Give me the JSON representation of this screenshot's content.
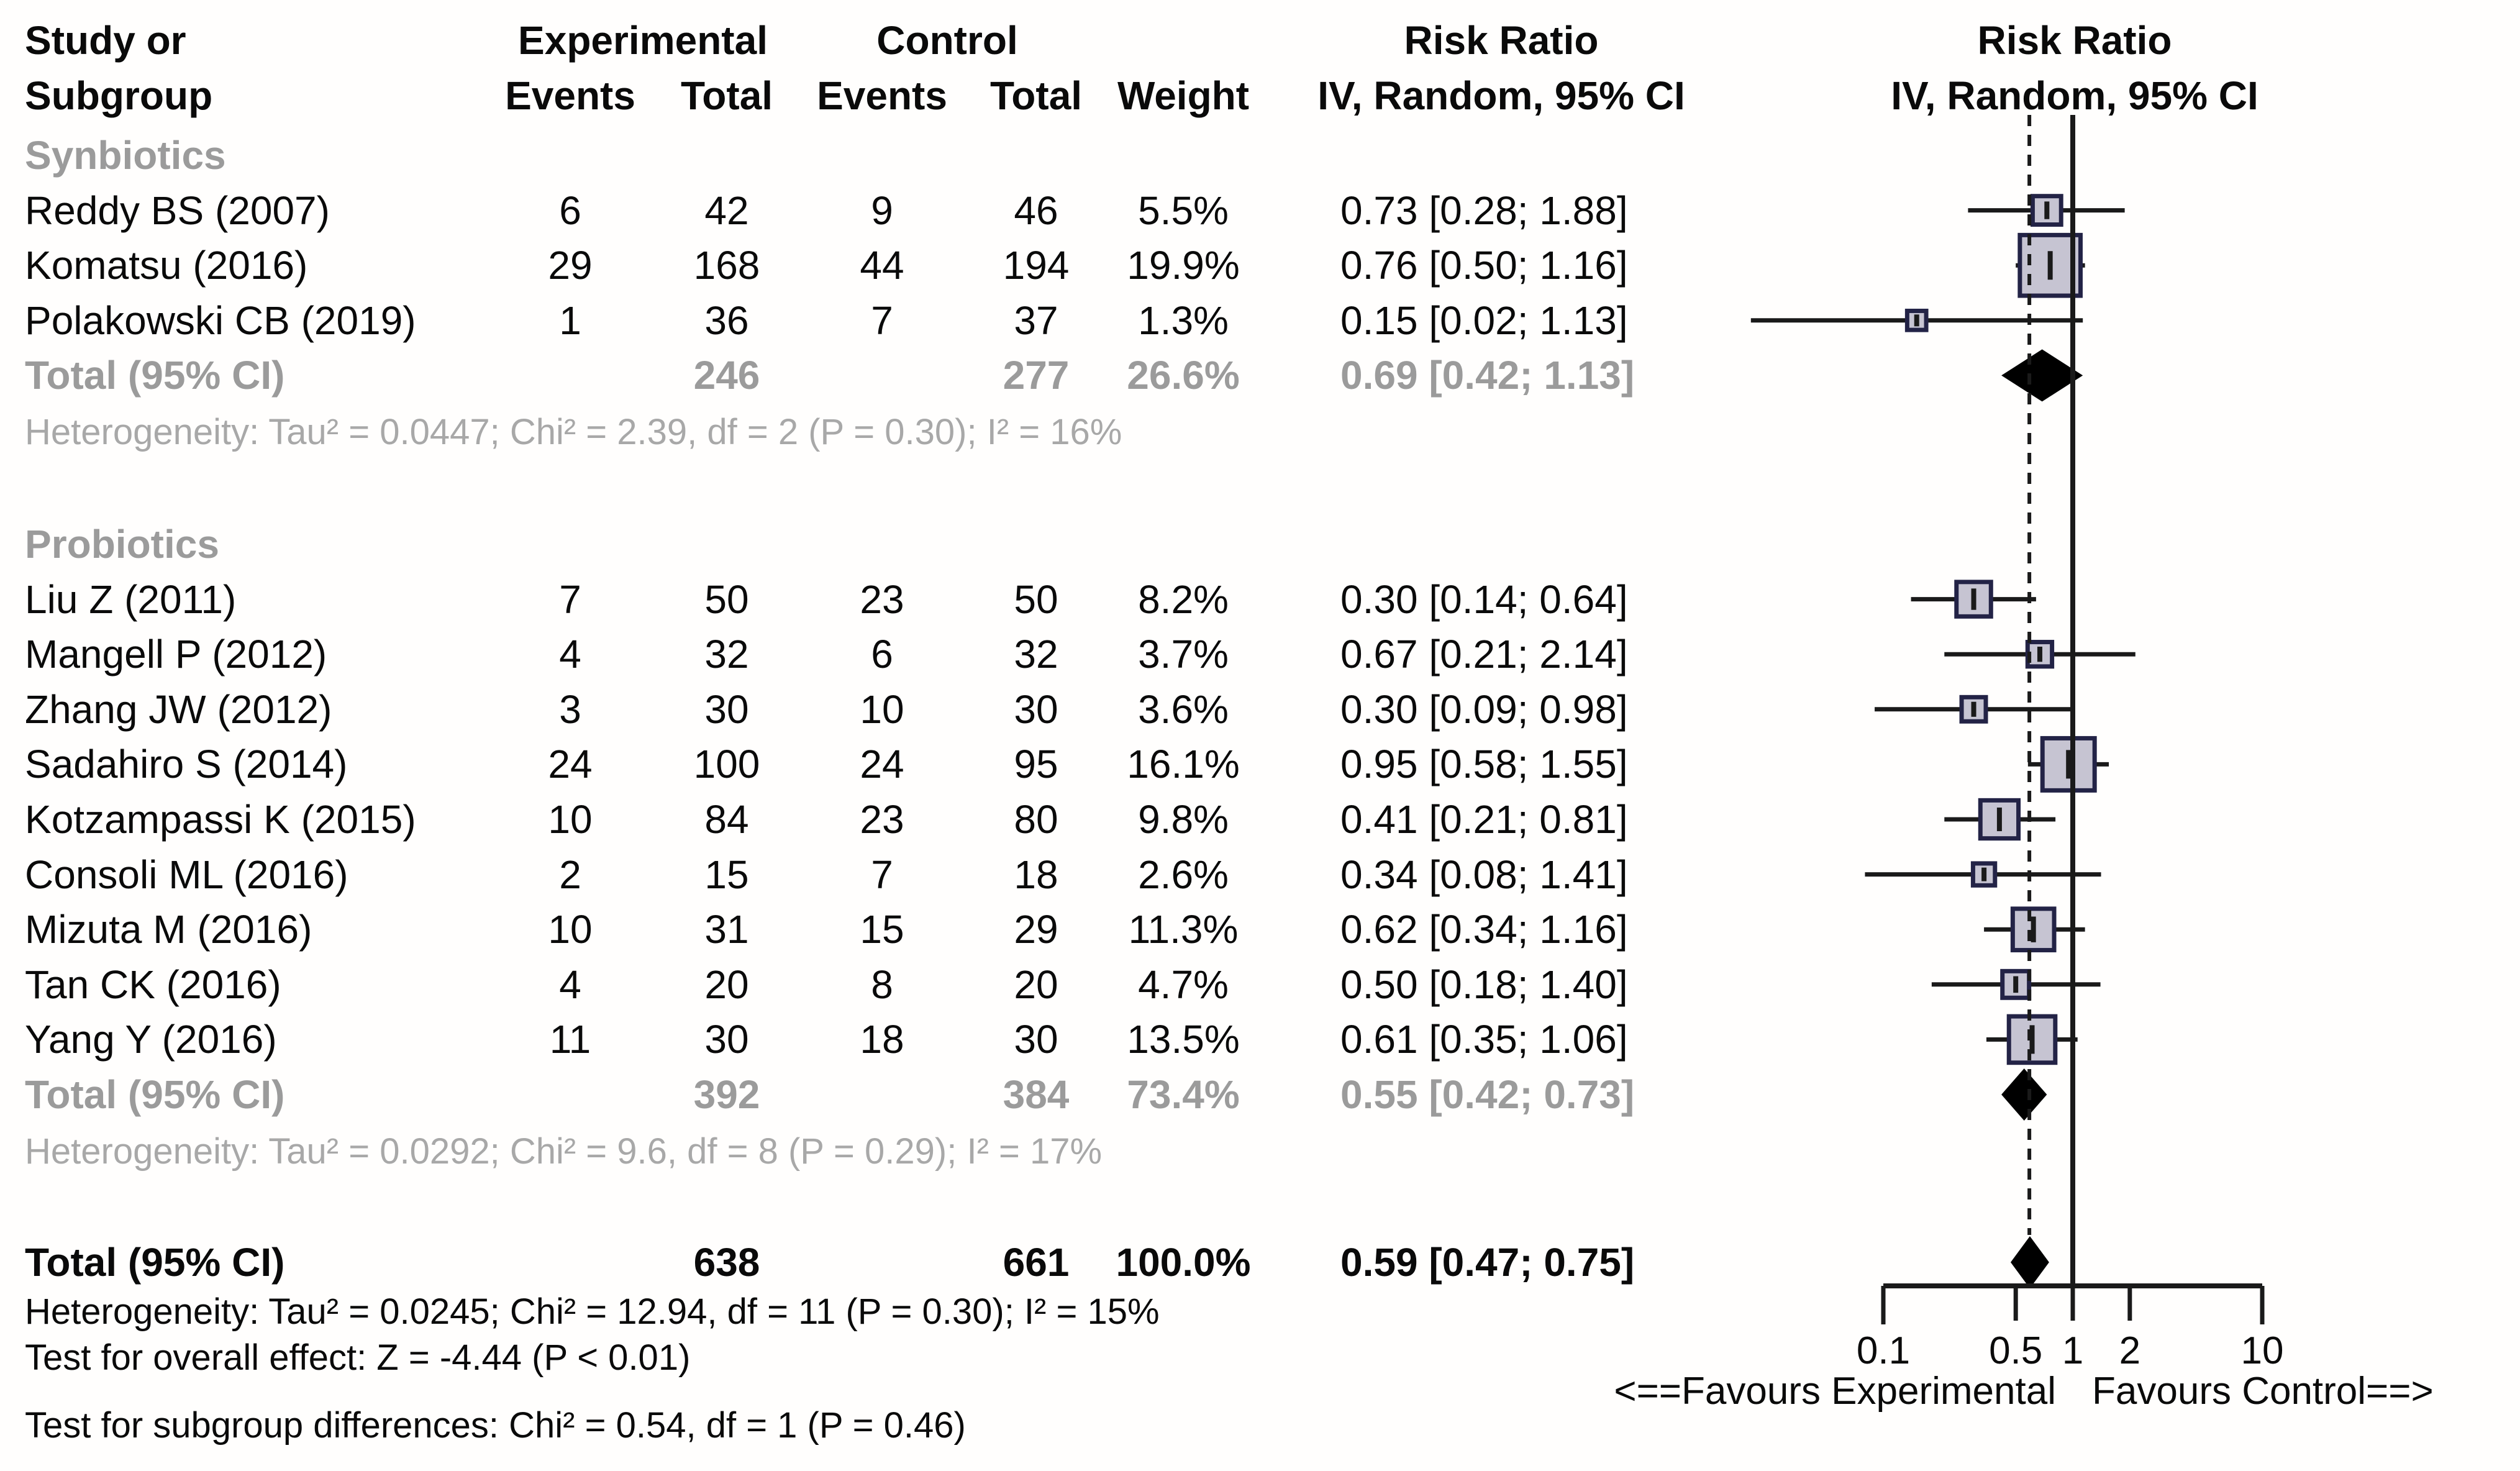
{
  "header": {
    "study_line1": "Study or",
    "study_line2": "Subgroup",
    "experimental": "Experimental",
    "control": "Control",
    "events": "Events",
    "total": "Total",
    "weight": "Weight",
    "risk_ratio": "Risk Ratio",
    "method": "IV, Random, 95% CI"
  },
  "axis": {
    "tick_values": [
      0.1,
      0.5,
      1,
      2,
      10
    ],
    "tick_labels": [
      "0.1",
      "0.5",
      "1",
      "2",
      "10"
    ],
    "favours_left": "<==Favours Experimental",
    "favours_right": "Favours Control==>",
    "scale": "log",
    "no_effect_value": 1,
    "pooled_effect_value": 0.59
  },
  "colors": {
    "square_fill": "#c6c4d2",
    "square_border": "#232346",
    "diamond_fill": "#000000",
    "line_black": "#1a1a1a",
    "gray_bold_text": "#9b9b9b",
    "gray_text": "#a8a8a8"
  },
  "chart_data": {
    "type": "forest",
    "effect_measure": "Risk Ratio",
    "model": "IV, Random, 95% CI",
    "x_scale": "log",
    "x_ticks": [
      0.1,
      0.5,
      1,
      2,
      10
    ],
    "groups": [
      {
        "label": "Synbiotics",
        "studies": [
          {
            "name": "Reddy BS (2007)",
            "exp_events": "6",
            "exp_total": "42",
            "ctl_events": "9",
            "ctl_total": "46",
            "weight": "5.5%",
            "weight_pct": 5.5,
            "rr": 0.73,
            "ci_low": 0.28,
            "ci_high": 1.88,
            "rr_text": "0.73 [0.28; 1.88]"
          },
          {
            "name": "Komatsu (2016)",
            "exp_events": "29",
            "exp_total": "168",
            "ctl_events": "44",
            "ctl_total": "194",
            "weight": "19.9%",
            "weight_pct": 19.9,
            "rr": 0.76,
            "ci_low": 0.5,
            "ci_high": 1.16,
            "rr_text": "0.76 [0.50; 1.16]"
          },
          {
            "name": "Polakowski CB (2019)",
            "exp_events": "1",
            "exp_total": "36",
            "ctl_events": "7",
            "ctl_total": "37",
            "weight": "1.3%",
            "weight_pct": 1.3,
            "rr": 0.15,
            "ci_low": 0.02,
            "ci_high": 1.13,
            "rr_text": "0.15 [0.02; 1.13]"
          }
        ],
        "total": {
          "label": "Total (95% CI)",
          "exp_total": "246",
          "ctl_total": "277",
          "weight": "26.6%",
          "rr": 0.69,
          "ci_low": 0.42,
          "ci_high": 1.13,
          "rr_text": "0.69 [0.42; 1.13]"
        },
        "heterogeneity": "Heterogeneity: Tau² = 0.0447; Chi² = 2.39, df = 2 (P = 0.30); I² = 16%"
      },
      {
        "label": "Probiotics",
        "studies": [
          {
            "name": "Liu Z (2011)",
            "exp_events": "7",
            "exp_total": "50",
            "ctl_events": "23",
            "ctl_total": "50",
            "weight": "8.2%",
            "weight_pct": 8.2,
            "rr": 0.3,
            "ci_low": 0.14,
            "ci_high": 0.64,
            "rr_text": "0.30 [0.14; 0.64]"
          },
          {
            "name": "Mangell P (2012)",
            "exp_events": "4",
            "exp_total": "32",
            "ctl_events": "6",
            "ctl_total": "32",
            "weight": "3.7%",
            "weight_pct": 3.7,
            "rr": 0.67,
            "ci_low": 0.21,
            "ci_high": 2.14,
            "rr_text": "0.67 [0.21; 2.14]"
          },
          {
            "name": "Zhang JW (2012)",
            "exp_events": "3",
            "exp_total": "30",
            "ctl_events": "10",
            "ctl_total": "30",
            "weight": "3.6%",
            "weight_pct": 3.6,
            "rr": 0.3,
            "ci_low": 0.09,
            "ci_high": 0.98,
            "rr_text": "0.30 [0.09; 0.98]"
          },
          {
            "name": "Sadahiro S (2014)",
            "exp_events": "24",
            "exp_total": "100",
            "ctl_events": "24",
            "ctl_total": "95",
            "weight": "16.1%",
            "weight_pct": 16.1,
            "rr": 0.95,
            "ci_low": 0.58,
            "ci_high": 1.55,
            "rr_text": "0.95 [0.58; 1.55]"
          },
          {
            "name": "Kotzampassi K (2015)",
            "exp_events": "10",
            "exp_total": "84",
            "ctl_events": "23",
            "ctl_total": "80",
            "weight": "9.8%",
            "weight_pct": 9.8,
            "rr": 0.41,
            "ci_low": 0.21,
            "ci_high": 0.81,
            "rr_text": "0.41 [0.21; 0.81]"
          },
          {
            "name": "Consoli ML (2016)",
            "exp_events": "2",
            "exp_total": "15",
            "ctl_events": "7",
            "ctl_total": "18",
            "weight": "2.6%",
            "weight_pct": 2.6,
            "rr": 0.34,
            "ci_low": 0.08,
            "ci_high": 1.41,
            "rr_text": "0.34 [0.08; 1.41]"
          },
          {
            "name": "Mizuta M (2016)",
            "exp_events": "10",
            "exp_total": "31",
            "ctl_events": "15",
            "ctl_total": "29",
            "weight": "11.3%",
            "weight_pct": 11.3,
            "rr": 0.62,
            "ci_low": 0.34,
            "ci_high": 1.16,
            "rr_text": "0.62 [0.34; 1.16]"
          },
          {
            "name": "Tan CK (2016)",
            "exp_events": "4",
            "exp_total": "20",
            "ctl_events": "8",
            "ctl_total": "20",
            "weight": "4.7%",
            "weight_pct": 4.7,
            "rr": 0.5,
            "ci_low": 0.18,
            "ci_high": 1.4,
            "rr_text": "0.50 [0.18; 1.40]"
          },
          {
            "name": "Yang Y (2016)",
            "exp_events": "11",
            "exp_total": "30",
            "ctl_events": "18",
            "ctl_total": "30",
            "weight": "13.5%",
            "weight_pct": 13.5,
            "rr": 0.61,
            "ci_low": 0.35,
            "ci_high": 1.06,
            "rr_text": "0.61 [0.35; 1.06]"
          }
        ],
        "total": {
          "label": "Total (95% CI)",
          "exp_total": "392",
          "ctl_total": "384",
          "weight": "73.4%",
          "rr": 0.55,
          "ci_low": 0.42,
          "ci_high": 0.73,
          "rr_text": "0.55 [0.42; 0.73]"
        },
        "heterogeneity": "Heterogeneity: Tau² = 0.0292; Chi² = 9.6, df = 8 (P = 0.29); I² = 17%"
      }
    ],
    "overall": {
      "total": {
        "label": "Total (95% CI)",
        "exp_total": "638",
        "ctl_total": "661",
        "weight": "100.0%",
        "rr": 0.59,
        "ci_low": 0.47,
        "ci_high": 0.75,
        "rr_text": "0.59 [0.47; 0.75]"
      },
      "heterogeneity": "Heterogeneity: Tau² = 0.0245; Chi² = 12.94, df = 11 (P = 0.30); I² = 15%",
      "test_overall": "Test for overall effect: Z = -4.44 (P < 0.01)",
      "test_subgroup": "Test for subgroup differences: Chi² = 0.54, df = 1 (P = 0.46)"
    }
  }
}
